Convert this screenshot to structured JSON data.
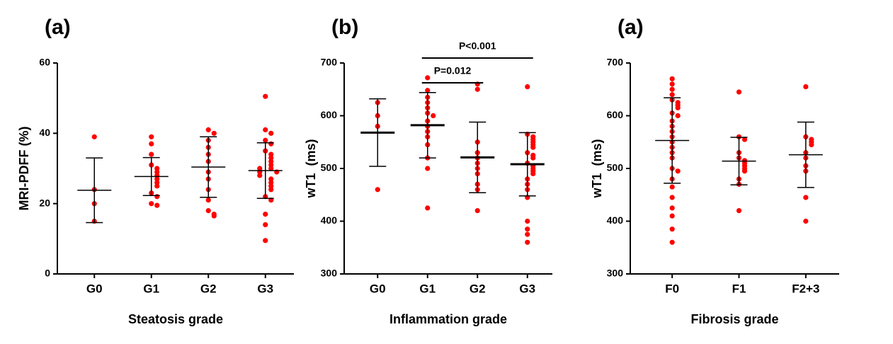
{
  "chart_data": [
    {
      "type": "strip",
      "panel_label": "(a)",
      "x_label": "Steatosis grade",
      "y_label": "MRI-PDFF (%)",
      "categories": [
        "G0",
        "G1",
        "G2",
        "G3"
      ],
      "points": [
        [
          39,
          24,
          20,
          15
        ],
        [
          39,
          37,
          34,
          31,
          30,
          29,
          28,
          27,
          26,
          25,
          23,
          22,
          20,
          19.5
        ],
        [
          41,
          40,
          38,
          36,
          34,
          32,
          29,
          27,
          24,
          21,
          18,
          17,
          16.5
        ],
        [
          50.5,
          41,
          40,
          38,
          37,
          35,
          34,
          33,
          32,
          31,
          30,
          30,
          29,
          29,
          28,
          27,
          26,
          25,
          24,
          22,
          21,
          17,
          14,
          9.5
        ]
      ],
      "mean": [
        23.8,
        27.7,
        30.4,
        29.4
      ],
      "sd": [
        9.2,
        5.4,
        8.6,
        7.9
      ],
      "color": "#ff0000",
      "ylim": [
        0,
        60
      ],
      "yticks": [
        0,
        20,
        40,
        60
      ]
    },
    {
      "type": "strip",
      "panel_label": "(b)",
      "x_label": "Inflammation grade",
      "y_label": "wT1  (ms)",
      "categories": [
        "G0",
        "G1",
        "G2",
        "G3"
      ],
      "points": [
        [
          625,
          600,
          580,
          460
        ],
        [
          672,
          648,
          635,
          625,
          615,
          605,
          600,
          590,
          580,
          570,
          560,
          545,
          520,
          500,
          425
        ],
        [
          660,
          650,
          550,
          530,
          520,
          510,
          500,
          490,
          470,
          460,
          420
        ],
        [
          655,
          565,
          560,
          555,
          550,
          545,
          540,
          530,
          525,
          520,
          510,
          505,
          500,
          495,
          490,
          480,
          470,
          460,
          445,
          400,
          385,
          375,
          360
        ]
      ],
      "mean": [
        568,
        582,
        521,
        508
      ],
      "sd": [
        64,
        62,
        67,
        60
      ],
      "color": "#ff0000",
      "ylim": [
        300,
        700
      ],
      "yticks": [
        300,
        400,
        500,
        600,
        700
      ],
      "annotations": [
        {
          "text": "P<0.001",
          "between": [
            "G1",
            "G3"
          ]
        },
        {
          "text": "P=0.012",
          "between": [
            "G1",
            "G2"
          ]
        }
      ]
    },
    {
      "type": "strip",
      "panel_label": "(a)",
      "x_label": "Fibrosis grade",
      "y_label": "wT1  (ms)",
      "categories": [
        "F0",
        "F1",
        "F2+3"
      ],
      "points": [
        [
          670,
          660,
          650,
          640,
          630,
          625,
          620,
          615,
          605,
          600,
          590,
          580,
          570,
          560,
          550,
          540,
          530,
          520,
          500,
          495,
          480,
          465,
          445,
          425,
          410,
          385,
          360
        ],
        [
          645,
          560,
          555,
          530,
          520,
          515,
          510,
          505,
          500,
          495,
          480,
          470,
          420
        ],
        [
          655,
          560,
          555,
          550,
          545,
          530,
          520,
          505,
          495,
          445,
          400
        ]
      ],
      "mean": [
        553,
        514,
        526
      ],
      "sd": [
        81,
        45,
        62
      ],
      "color": "#ff0000",
      "ylim": [
        300,
        700
      ],
      "yticks": [
        300,
        400,
        500,
        600,
        700
      ]
    }
  ]
}
